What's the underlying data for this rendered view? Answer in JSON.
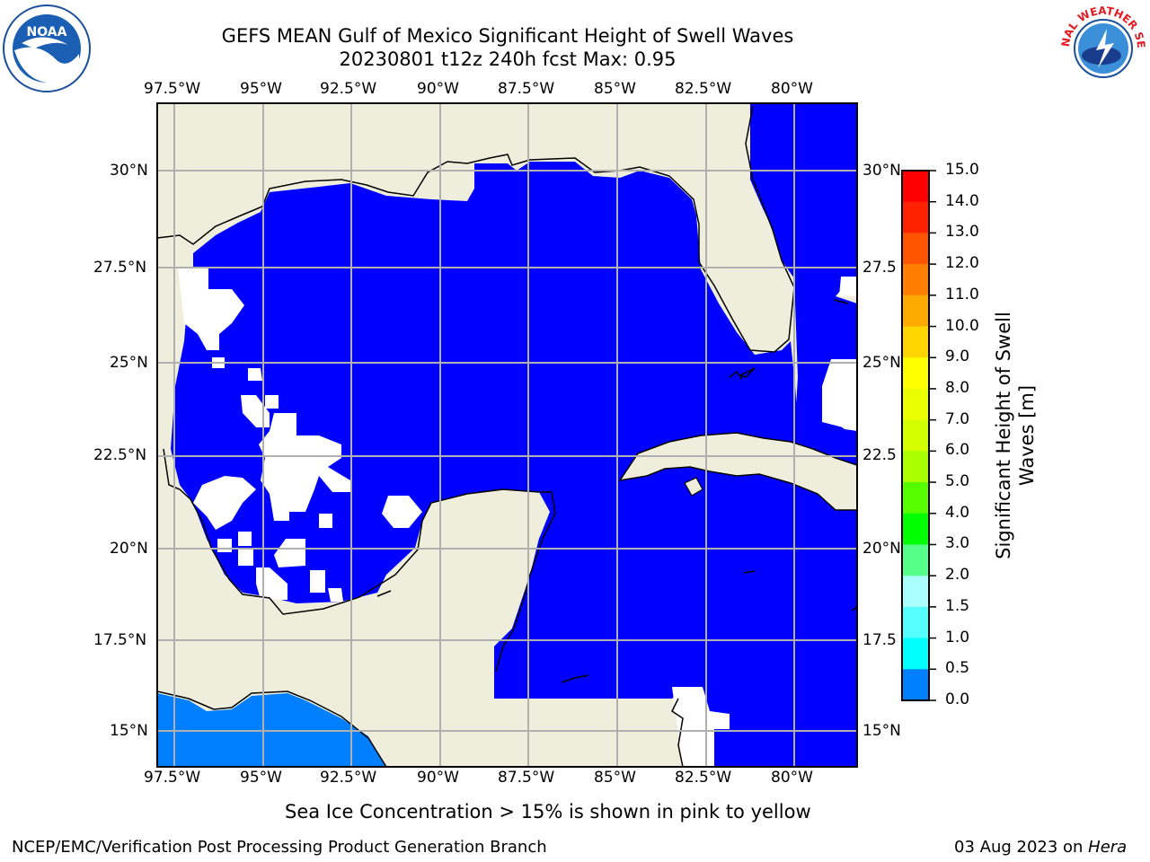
{
  "title": {
    "line1": "GEFS MEAN Gulf of Mexico Significant Height of Swell Waves",
    "line2": "20230801 t12z 240h fcst   Max: 0.95"
  },
  "map": {
    "lon_labels": [
      "97.5°W",
      "95°W",
      "92.5°W",
      "90°W",
      "87.5°W",
      "85°W",
      "82.5°W",
      "80°W"
    ],
    "lat_labels": [
      "30°N",
      "27.5°N",
      "25°N",
      "22.5°N",
      "20°N",
      "17.5°N",
      "15°N"
    ],
    "lat_labels_right": [
      "30°N",
      "27.5",
      "25°N",
      "22.5",
      "20°N",
      "17.5",
      "15°N"
    ],
    "colors": {
      "land": "#efeedc",
      "sea_0": "#0000ff",
      "sea_05": "#007fff",
      "missing": "#ffffff",
      "grid": "#b0b0b0"
    }
  },
  "colorbar": {
    "label_line1": "Significant Height of Swell",
    "label_line2": "Waves [m]",
    "ticks": [
      "15.0",
      "14.0",
      "13.0",
      "12.0",
      "11.0",
      "10.0",
      "9.0",
      "8.0",
      "7.0",
      "6.0",
      "5.0",
      "4.0",
      "3.0",
      "2.0",
      "1.5",
      "1.0",
      "0.5",
      "0.0"
    ],
    "colors": [
      "#ff0000",
      "#ff2200",
      "#ff5500",
      "#ff8000",
      "#ffaa00",
      "#ffd400",
      "#ffff00",
      "#eaff00",
      "#d4ff00",
      "#aaff00",
      "#55ff00",
      "#00ff00",
      "#55ff88",
      "#aaffff",
      "#55ffff",
      "#00ffff",
      "#007fff",
      "#0000ff"
    ]
  },
  "footer": {
    "note": "Sea Ice Concentration > 15% is shown in pink to yellow",
    "org": "NCEP/EMC/Verification Post Processing Product Generation Branch",
    "date": "03 Aug 2023 on ",
    "host": "Hera"
  },
  "logos": {
    "left": "NOAA",
    "right": "NATIONAL WEATHER SERVICE"
  }
}
